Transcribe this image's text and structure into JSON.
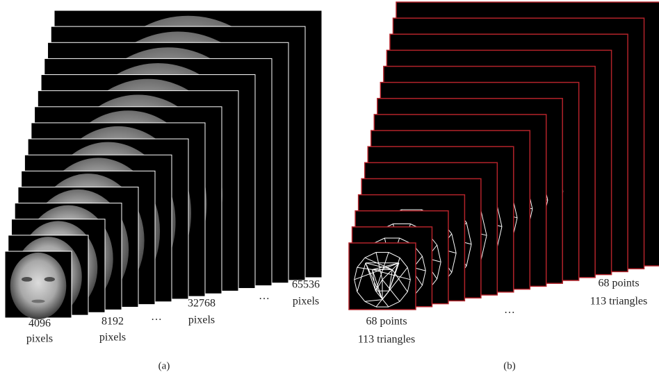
{
  "panels": [
    {
      "caption": "(a)",
      "labels": [
        {
          "lines": [
            "4096",
            "pixels"
          ]
        },
        {
          "lines": [
            "8192",
            "pixels"
          ]
        },
        {
          "lines": [
            "···"
          ]
        },
        {
          "lines": [
            "32768",
            "pixels"
          ]
        },
        {
          "lines": [
            "···"
          ]
        },
        {
          "lines": [
            "65536",
            "pixels"
          ]
        }
      ]
    },
    {
      "caption": "(b)",
      "labels": [
        {
          "lines": [
            "68 points",
            "113 triangles"
          ]
        },
        {
          "lines": [
            "···"
          ]
        },
        {
          "lines": [
            "68 points",
            "113 triangles"
          ]
        }
      ]
    }
  ]
}
